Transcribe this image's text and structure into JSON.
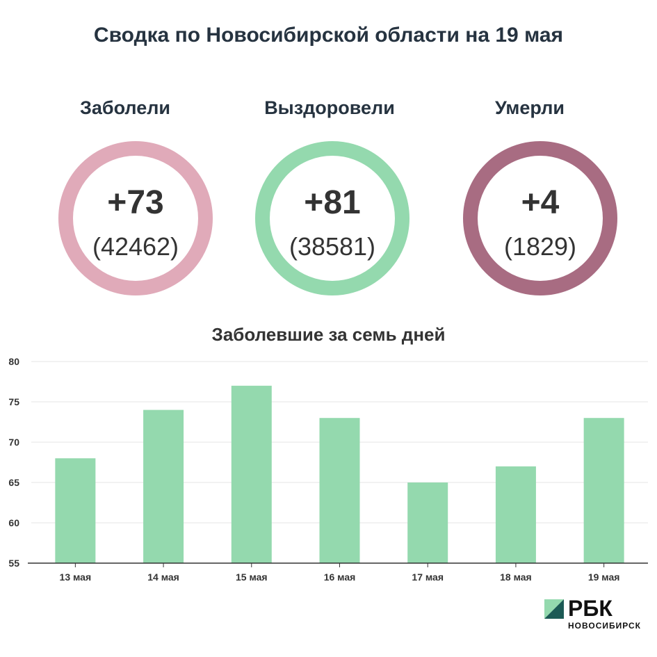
{
  "title": "Сводка по Новосибирской области на 19 мая",
  "stats": [
    {
      "label": "Заболели",
      "delta": "+73",
      "total": "(42462)",
      "color": "#e0aab9"
    },
    {
      "label": "Выздоровели",
      "delta": "+81",
      "total": "(38581)",
      "color": "#94d9ae"
    },
    {
      "label": "Умерли",
      "delta": "+4",
      "total": "(1829)",
      "color": "#a86c82"
    }
  ],
  "chart_data": {
    "type": "bar",
    "title": "Заболевшие за семь дней",
    "categories": [
      "13 мая",
      "14 мая",
      "15 мая",
      "16 мая",
      "17 мая",
      "18 мая",
      "19 мая"
    ],
    "values": [
      68,
      74,
      77,
      73,
      65,
      67,
      73
    ],
    "ylim": [
      55,
      80
    ],
    "yticks": [
      55,
      60,
      65,
      70,
      75,
      80
    ],
    "grid": true,
    "bar_color": "#94d9ae"
  },
  "logo": {
    "name": "РБК",
    "sub": "НОВОСИБИРСК",
    "colors": [
      "#1c5a55",
      "#94d9ae"
    ]
  }
}
